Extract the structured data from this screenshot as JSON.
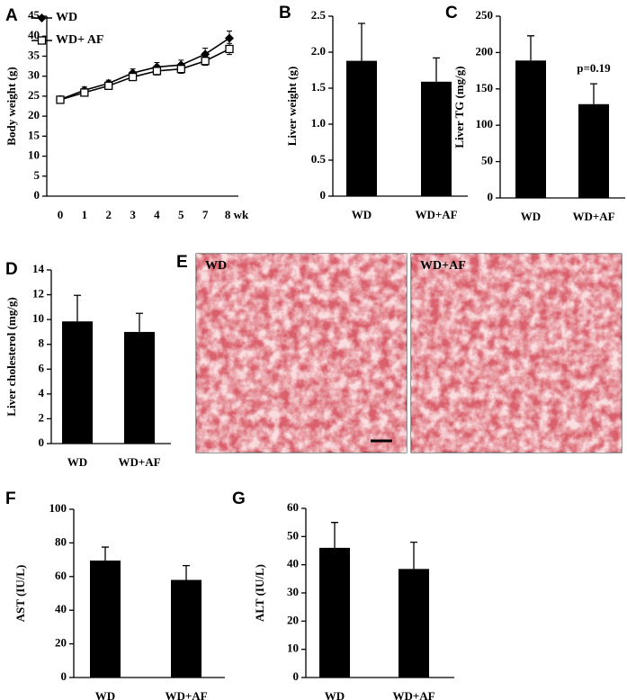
{
  "chart_data": [
    {
      "type": "line",
      "panel": "A",
      "ylabel": "Body weight (g)",
      "categories": [
        "0",
        "1",
        "2",
        "3",
        "4",
        "5",
        "7",
        "8 wk"
      ],
      "series": [
        {
          "name": "WD",
          "color": "#000000",
          "marker": "diamond",
          "values": [
            24.2,
            26.5,
            28.2,
            30.8,
            32.3,
            32.8,
            35.5,
            39.5
          ],
          "errors": [
            0.8,
            0.8,
            0.8,
            1.0,
            1.1,
            1.2,
            1.5,
            1.8
          ]
        },
        {
          "name": "WD+ AF",
          "color": "#000000",
          "marker": "open-square",
          "values": [
            24.1,
            25.9,
            27.6,
            29.8,
            31.3,
            31.8,
            33.8,
            36.8
          ],
          "errors": [
            0.8,
            0.7,
            0.8,
            0.9,
            1.0,
            1.1,
            1.1,
            1.4
          ]
        }
      ],
      "ylim": [
        0,
        45
      ],
      "yticks": [
        0,
        5,
        10,
        15,
        20,
        25,
        30,
        35,
        40,
        45
      ]
    },
    {
      "type": "bar",
      "panel": "B",
      "ylabel": "Liver weight (g)",
      "categories": [
        "WD",
        "WD+AF"
      ],
      "values": [
        1.88,
        1.59
      ],
      "errors": [
        0.52,
        0.33
      ],
      "color": "#000000",
      "ylim": [
        0,
        2.5
      ],
      "yticks": [
        0,
        0.5,
        {
          "value": 1,
          "label": "1.0"
        },
        1.5,
        {
          "value": 2,
          "label": "2.0"
        },
        2.5
      ]
    },
    {
      "type": "bar",
      "panel": "C",
      "ylabel": "Liver TG (mg/g)",
      "categories": [
        "WD",
        "WD+AF"
      ],
      "values": [
        189,
        129
      ],
      "errors": [
        34,
        28
      ],
      "color": "#000000",
      "annotation": "p=0.19",
      "ylim": [
        0,
        250
      ],
      "yticks": [
        0,
        50,
        100,
        150,
        200,
        250
      ]
    },
    {
      "type": "bar",
      "panel": "D",
      "ylabel": "Liver cholesterol (mg/g)",
      "categories": [
        "WD",
        "WD+AF"
      ],
      "values": [
        9.85,
        9.0
      ],
      "errors": [
        2.1,
        1.5
      ],
      "color": "#000000",
      "ylim": [
        0,
        14
      ],
      "yticks": [
        0,
        2,
        4,
        6,
        8,
        10,
        12,
        14
      ]
    },
    {
      "type": "bar",
      "panel": "F",
      "ylabel": "AST (IU/L)",
      "categories": [
        "WD",
        "WD+AF"
      ],
      "values": [
        69.5,
        58
      ],
      "errors": [
        8,
        8.5
      ],
      "color": "#000000",
      "ylim": [
        0,
        100
      ],
      "yticks": [
        0,
        20,
        40,
        60,
        80,
        100
      ]
    },
    {
      "type": "bar",
      "panel": "G",
      "ylabel": "ALT (IU/L)",
      "categories": [
        "WD",
        "WD+AF"
      ],
      "values": [
        46,
        38.5
      ],
      "errors": [
        9,
        9.5
      ],
      "color": "#000000",
      "ylim": [
        0,
        60
      ],
      "yticks": [
        0,
        10,
        20,
        30,
        40,
        50,
        60
      ]
    }
  ],
  "histology": {
    "panel": "E",
    "labels": [
      "WD",
      "WD+AF"
    ]
  }
}
